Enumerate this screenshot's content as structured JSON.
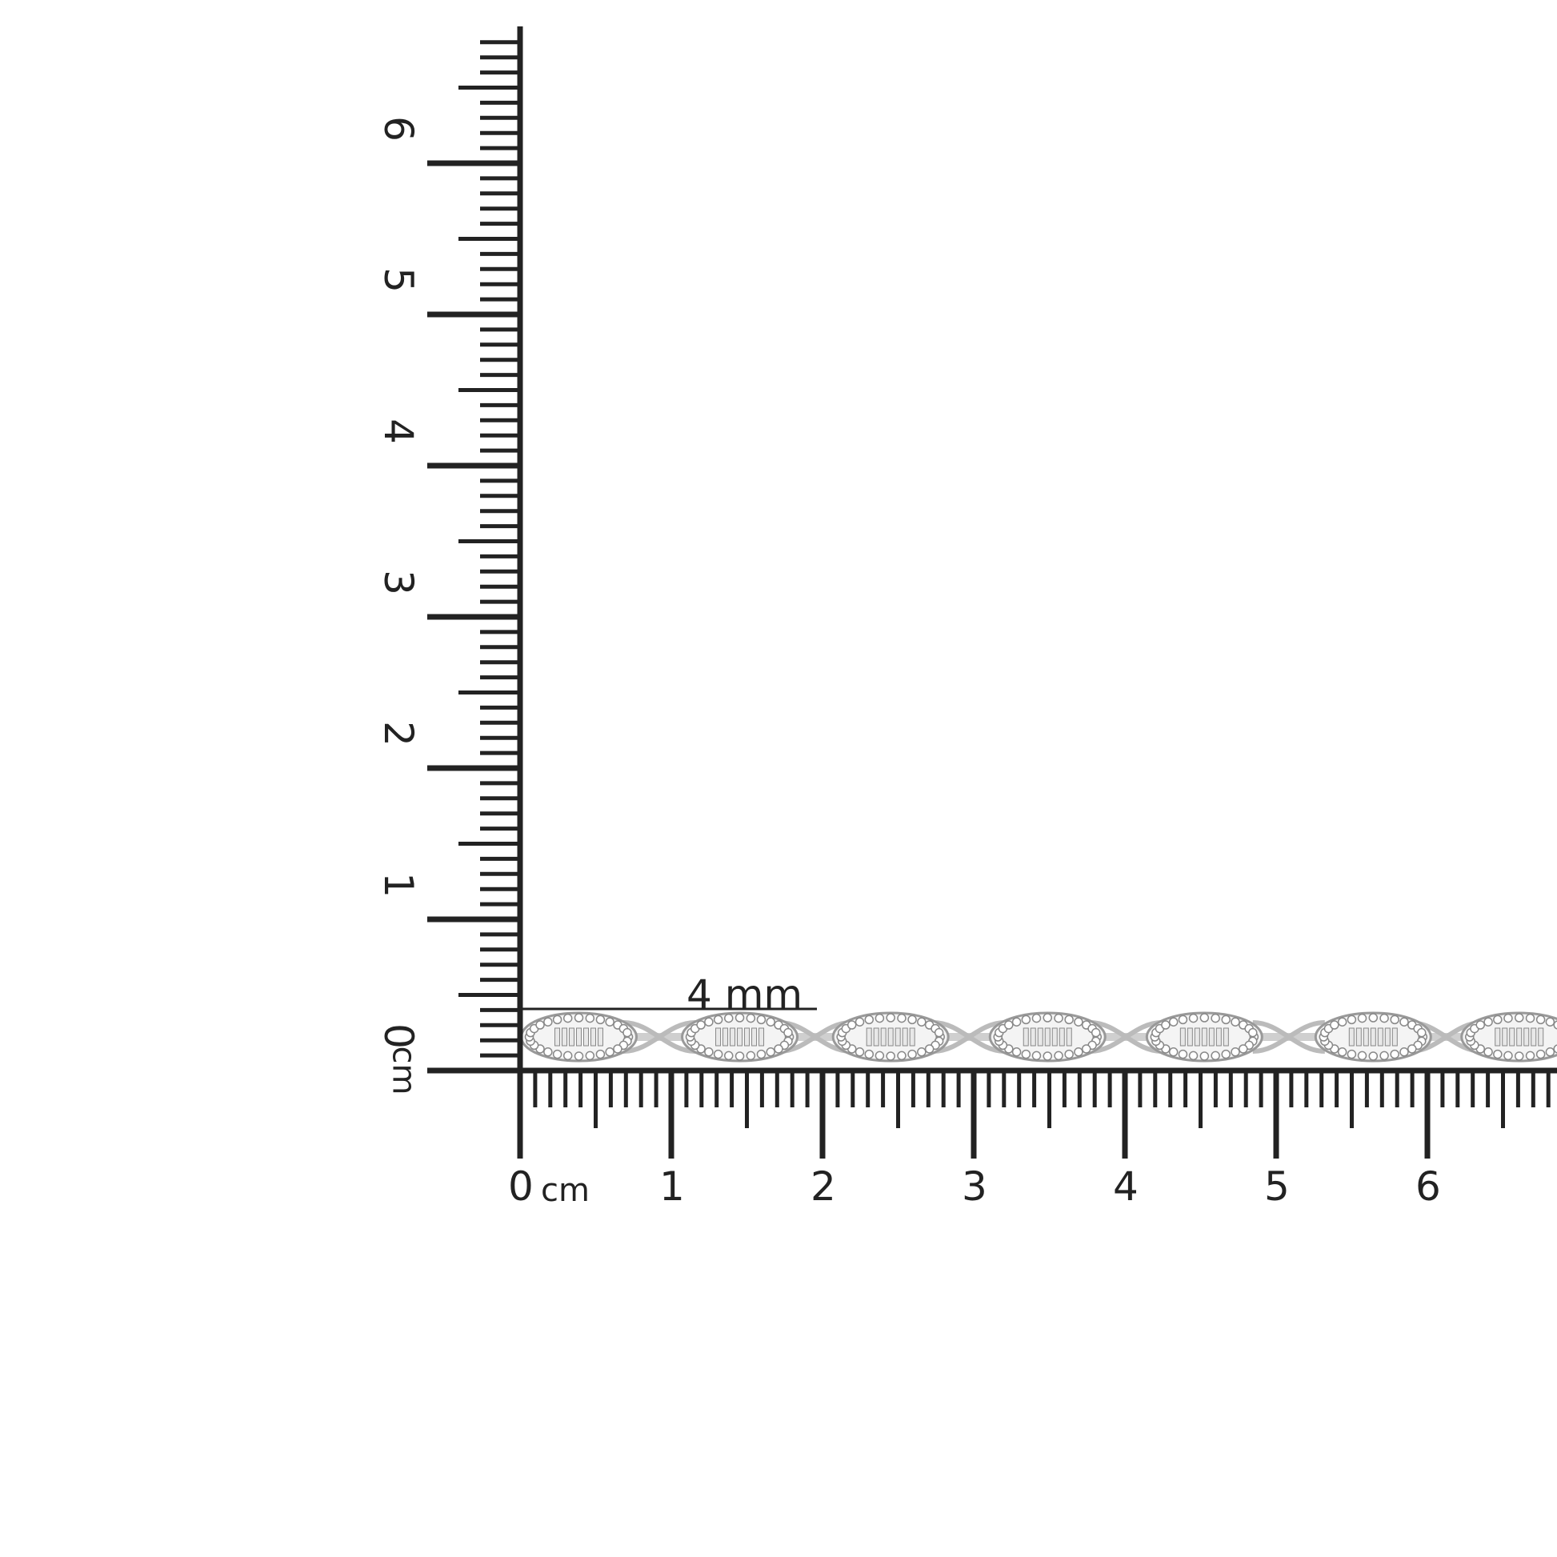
{
  "ruler": {
    "unit": "cm",
    "horizontal_labels": [
      "0",
      "1",
      "2",
      "3",
      "4",
      "5",
      "6"
    ],
    "vertical_labels": [
      "0",
      "1",
      "2",
      "3",
      "4",
      "5",
      "6"
    ],
    "origin_unit_label": "cm",
    "color": "#222222"
  },
  "measurement": {
    "label": "4 mm"
  },
  "product": {
    "type": "bracelet",
    "links_visible": 7,
    "metal_color": "#d8d8d8"
  }
}
